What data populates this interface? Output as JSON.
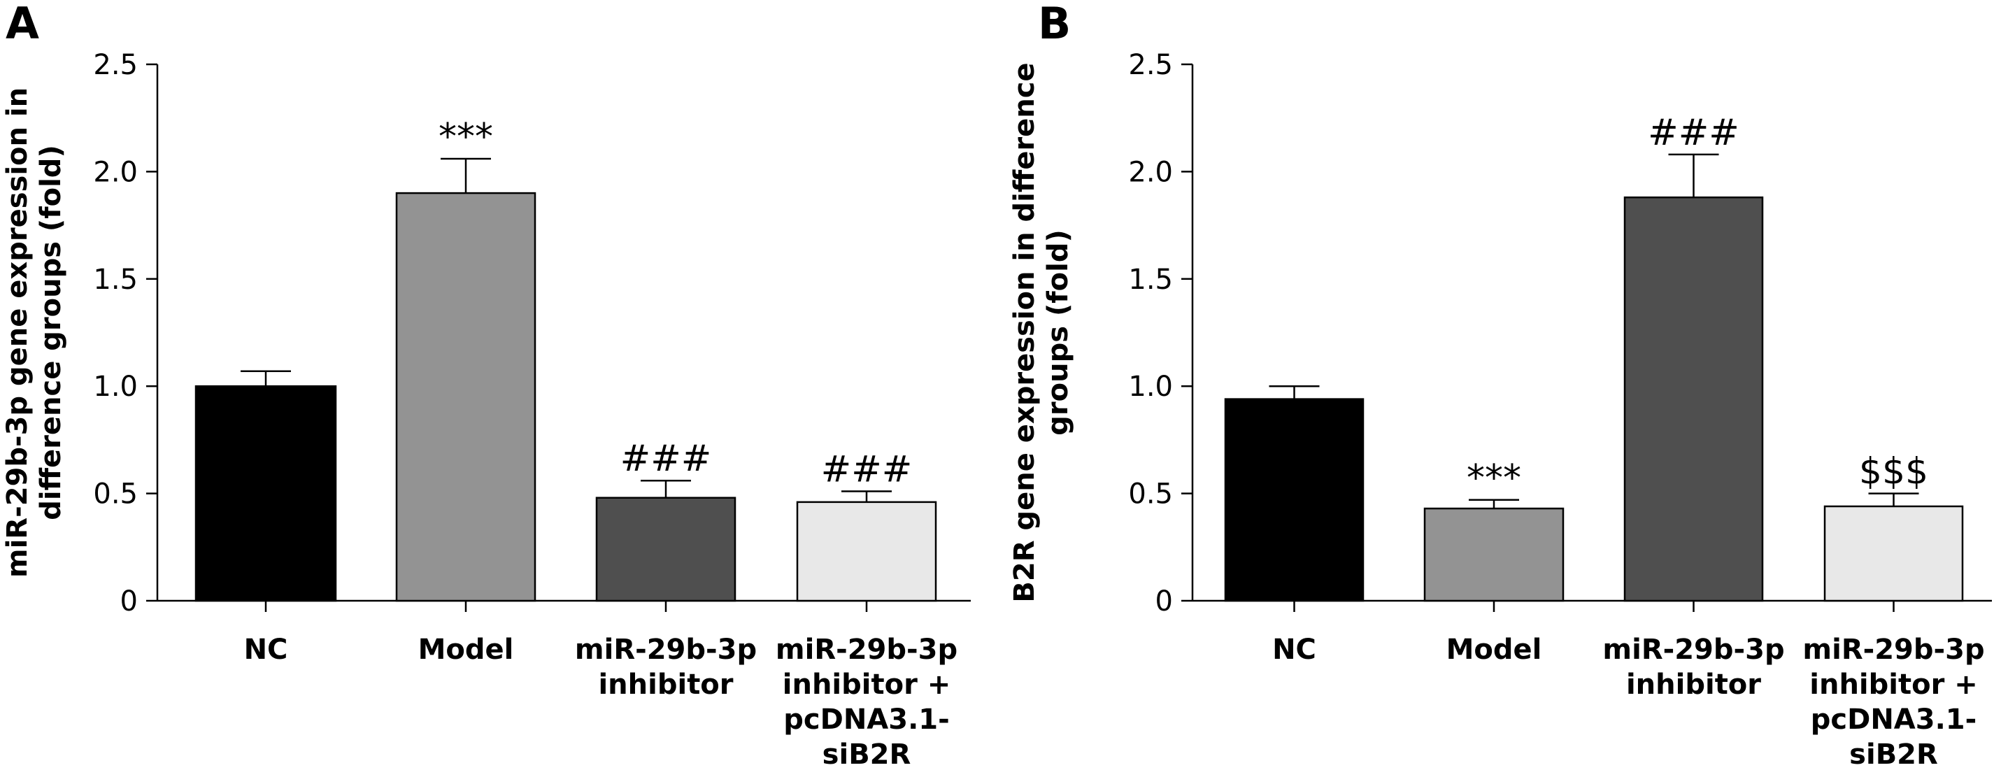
{
  "chart_data": [
    {
      "panel": "A",
      "type": "bar",
      "ylabel": [
        "miR-29b-3p gene expression in",
        "difference groups (fold)"
      ],
      "ylim": [
        0,
        2.5
      ],
      "yticks": [
        "0",
        "0.5",
        "1.0",
        "1.5",
        "2.0",
        "2.5"
      ],
      "categories": [
        [
          "NC"
        ],
        [
          "Model"
        ],
        [
          "miR-29b-3p",
          "inhibitor"
        ],
        [
          "miR-29b-3p",
          "inhibitor +",
          "pcDNA3.1-",
          "siB2R"
        ]
      ],
      "values": [
        1.0,
        1.9,
        0.48,
        0.46
      ],
      "errors": [
        0.07,
        0.16,
        0.08,
        0.05
      ],
      "colors": [
        "#000000",
        "#939393",
        "#4f4f4f",
        "#e8e8e8"
      ],
      "annotations": [
        "",
        "***",
        "###",
        "###"
      ]
    },
    {
      "panel": "B",
      "type": "bar",
      "ylabel": [
        "B2R gene expression in difference",
        "groups (fold)"
      ],
      "ylim": [
        0,
        2.5
      ],
      "yticks": [
        "0",
        "0.5",
        "1.0",
        "1.5",
        "2.0",
        "2.5"
      ],
      "categories": [
        [
          "NC"
        ],
        [
          "Model"
        ],
        [
          "miR-29b-3p",
          "inhibitor"
        ],
        [
          "miR-29b-3p",
          "inhibitor +",
          "pcDNA3.1-",
          "siB2R"
        ]
      ],
      "values": [
        0.94,
        0.43,
        1.88,
        0.44
      ],
      "errors": [
        0.06,
        0.04,
        0.2,
        0.06
      ],
      "colors": [
        "#000000",
        "#939393",
        "#4f4f4f",
        "#e8e8e8"
      ],
      "annotations": [
        "",
        "***",
        "###",
        "$$$"
      ]
    }
  ]
}
